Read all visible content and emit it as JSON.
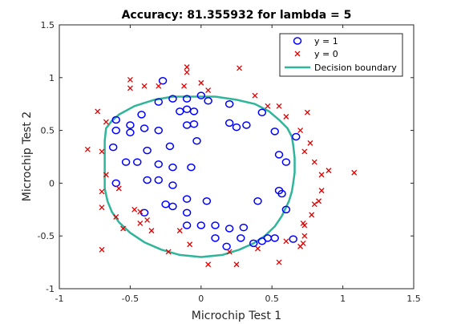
{
  "chart_data": {
    "type": "scatter",
    "title": "Accuracy: 81.355932 for lambda = 5",
    "xlabel": "Microchip Test 1",
    "ylabel": "Microchip Test 2",
    "xlim": [
      -1,
      1.5
    ],
    "ylim": [
      -1,
      1.5
    ],
    "xticks": [
      "-1",
      "-0.5",
      "0",
      "0.5",
      "1",
      "1.5"
    ],
    "yticks": [
      "-1",
      "-0.5",
      "0",
      "0.5",
      "1",
      "1.5"
    ],
    "grid": false,
    "legend_position": "top-right",
    "colors": {
      "positive": "#0000ff",
      "negative": "#e00000",
      "boundary": "#2fb59a"
    },
    "series": [
      {
        "name": "y = 1",
        "marker": "circle",
        "points": [
          [
            -0.6,
            0.6
          ],
          [
            -0.5,
            0.55
          ],
          [
            -0.42,
            0.65
          ],
          [
            -0.3,
            0.77
          ],
          [
            -0.2,
            0.8
          ],
          [
            -0.1,
            0.8
          ],
          [
            0.05,
            0.78
          ],
          [
            0.2,
            0.75
          ],
          [
            0.43,
            0.67
          ],
          [
            -0.1,
            0.7
          ],
          [
            -0.15,
            0.68
          ],
          [
            -0.05,
            0.68
          ],
          [
            0.0,
            0.83
          ],
          [
            -0.27,
            0.97
          ],
          [
            -0.6,
            0.5
          ],
          [
            -0.62,
            0.34
          ],
          [
            -0.5,
            0.48
          ],
          [
            -0.4,
            0.52
          ],
          [
            -0.3,
            0.5
          ],
          [
            -0.05,
            0.56
          ],
          [
            -0.1,
            0.55
          ],
          [
            0.2,
            0.57
          ],
          [
            0.25,
            0.53
          ],
          [
            0.32,
            0.55
          ],
          [
            0.52,
            0.49
          ],
          [
            0.55,
            0.27
          ],
          [
            0.67,
            0.44
          ],
          [
            0.6,
            0.2
          ],
          [
            -0.38,
            0.31
          ],
          [
            -0.22,
            0.35
          ],
          [
            -0.53,
            0.2
          ],
          [
            -0.45,
            0.2
          ],
          [
            -0.3,
            0.18
          ],
          [
            -0.2,
            0.15
          ],
          [
            -0.07,
            0.15
          ],
          [
            -0.38,
            0.03
          ],
          [
            -0.3,
            0.03
          ],
          [
            -0.2,
            -0.02
          ],
          [
            -0.6,
            0.0
          ],
          [
            -0.1,
            -0.15
          ],
          [
            0.04,
            -0.17
          ],
          [
            -0.25,
            -0.2
          ],
          [
            -0.2,
            -0.22
          ],
          [
            -0.1,
            -0.28
          ],
          [
            -0.4,
            -0.28
          ],
          [
            0.0,
            -0.4
          ],
          [
            0.1,
            -0.4
          ],
          [
            -0.1,
            -0.4
          ],
          [
            0.2,
            -0.43
          ],
          [
            0.3,
            -0.42
          ],
          [
            0.1,
            -0.52
          ],
          [
            0.18,
            -0.6
          ],
          [
            0.28,
            -0.52
          ],
          [
            0.37,
            -0.57
          ],
          [
            0.43,
            -0.55
          ],
          [
            0.47,
            -0.52
          ],
          [
            0.52,
            -0.52
          ],
          [
            0.6,
            -0.25
          ],
          [
            0.65,
            -0.53
          ],
          [
            0.55,
            -0.07
          ],
          [
            0.57,
            -0.1
          ],
          [
            0.4,
            -0.17
          ],
          [
            -0.03,
            0.4
          ]
        ]
      },
      {
        "name": "y = 0",
        "marker": "x",
        "points": [
          [
            -0.5,
            0.98
          ],
          [
            -0.5,
            0.9
          ],
          [
            -0.4,
            0.92
          ],
          [
            -0.3,
            0.92
          ],
          [
            -0.12,
            0.92
          ],
          [
            -0.1,
            1.05
          ],
          [
            -0.1,
            1.1
          ],
          [
            0.0,
            0.95
          ],
          [
            0.05,
            0.88
          ],
          [
            0.27,
            1.09
          ],
          [
            0.38,
            0.83
          ],
          [
            0.47,
            0.73
          ],
          [
            0.55,
            0.73
          ],
          [
            0.6,
            0.63
          ],
          [
            0.75,
            0.67
          ],
          [
            0.7,
            0.5
          ],
          [
            -0.73,
            0.68
          ],
          [
            -0.67,
            0.58
          ],
          [
            -0.8,
            0.32
          ],
          [
            -0.7,
            0.3
          ],
          [
            -0.67,
            0.08
          ],
          [
            -0.7,
            -0.08
          ],
          [
            -0.58,
            -0.05
          ],
          [
            -0.7,
            -0.23
          ],
          [
            -0.6,
            -0.32
          ],
          [
            -0.55,
            -0.43
          ],
          [
            -0.43,
            -0.27
          ],
          [
            -0.38,
            -0.35
          ],
          [
            -0.47,
            -0.25
          ],
          [
            0.73,
            0.3
          ],
          [
            0.77,
            0.38
          ],
          [
            0.8,
            0.2
          ],
          [
            0.85,
            0.08
          ],
          [
            0.9,
            0.12
          ],
          [
            1.08,
            0.1
          ],
          [
            0.85,
            -0.07
          ],
          [
            0.83,
            -0.17
          ],
          [
            0.8,
            -0.2
          ],
          [
            0.78,
            -0.3
          ],
          [
            0.72,
            -0.38
          ],
          [
            0.73,
            -0.4
          ],
          [
            0.73,
            -0.5
          ],
          [
            0.72,
            -0.57
          ],
          [
            0.6,
            -0.55
          ],
          [
            -0.7,
            -0.63
          ],
          [
            -0.43,
            -0.38
          ],
          [
            -0.35,
            -0.45
          ],
          [
            -0.23,
            -0.65
          ],
          [
            -0.08,
            -0.58
          ],
          [
            -0.15,
            -0.45
          ],
          [
            0.05,
            -0.77
          ],
          [
            0.2,
            -0.65
          ],
          [
            0.25,
            -0.77
          ],
          [
            0.55,
            -0.75
          ],
          [
            0.4,
            -0.62
          ],
          [
            0.7,
            -0.6
          ]
        ]
      },
      {
        "name": "Decision boundary",
        "marker": "line",
        "points": [
          [
            -0.63,
            0.59
          ],
          [
            -0.58,
            0.65
          ],
          [
            -0.47,
            0.73
          ],
          [
            -0.33,
            0.79
          ],
          [
            -0.2,
            0.82
          ],
          [
            -0.05,
            0.82
          ],
          [
            0.1,
            0.82
          ],
          [
            0.25,
            0.79
          ],
          [
            0.38,
            0.75
          ],
          [
            0.48,
            0.68
          ],
          [
            0.55,
            0.6
          ],
          [
            0.61,
            0.52
          ],
          [
            0.64,
            0.44
          ],
          [
            0.65,
            0.36
          ],
          [
            0.66,
            0.24
          ],
          [
            0.66,
            0.1
          ],
          [
            0.65,
            0.0
          ],
          [
            0.64,
            -0.08
          ],
          [
            0.62,
            -0.17
          ],
          [
            0.57,
            -0.31
          ],
          [
            0.52,
            -0.41
          ],
          [
            0.45,
            -0.5
          ],
          [
            0.37,
            -0.57
          ],
          [
            0.27,
            -0.63
          ],
          [
            0.15,
            -0.68
          ],
          [
            0.0,
            -0.7
          ],
          [
            -0.15,
            -0.68
          ],
          [
            -0.28,
            -0.63
          ],
          [
            -0.4,
            -0.56
          ],
          [
            -0.5,
            -0.47
          ],
          [
            -0.58,
            -0.37
          ],
          [
            -0.63,
            -0.27
          ],
          [
            -0.66,
            -0.17
          ],
          [
            -0.68,
            -0.05
          ],
          [
            -0.68,
            0.1
          ],
          [
            -0.68,
            0.25
          ],
          [
            -0.68,
            0.4
          ],
          [
            -0.67,
            0.52
          ],
          [
            -0.63,
            0.59
          ]
        ]
      }
    ]
  }
}
